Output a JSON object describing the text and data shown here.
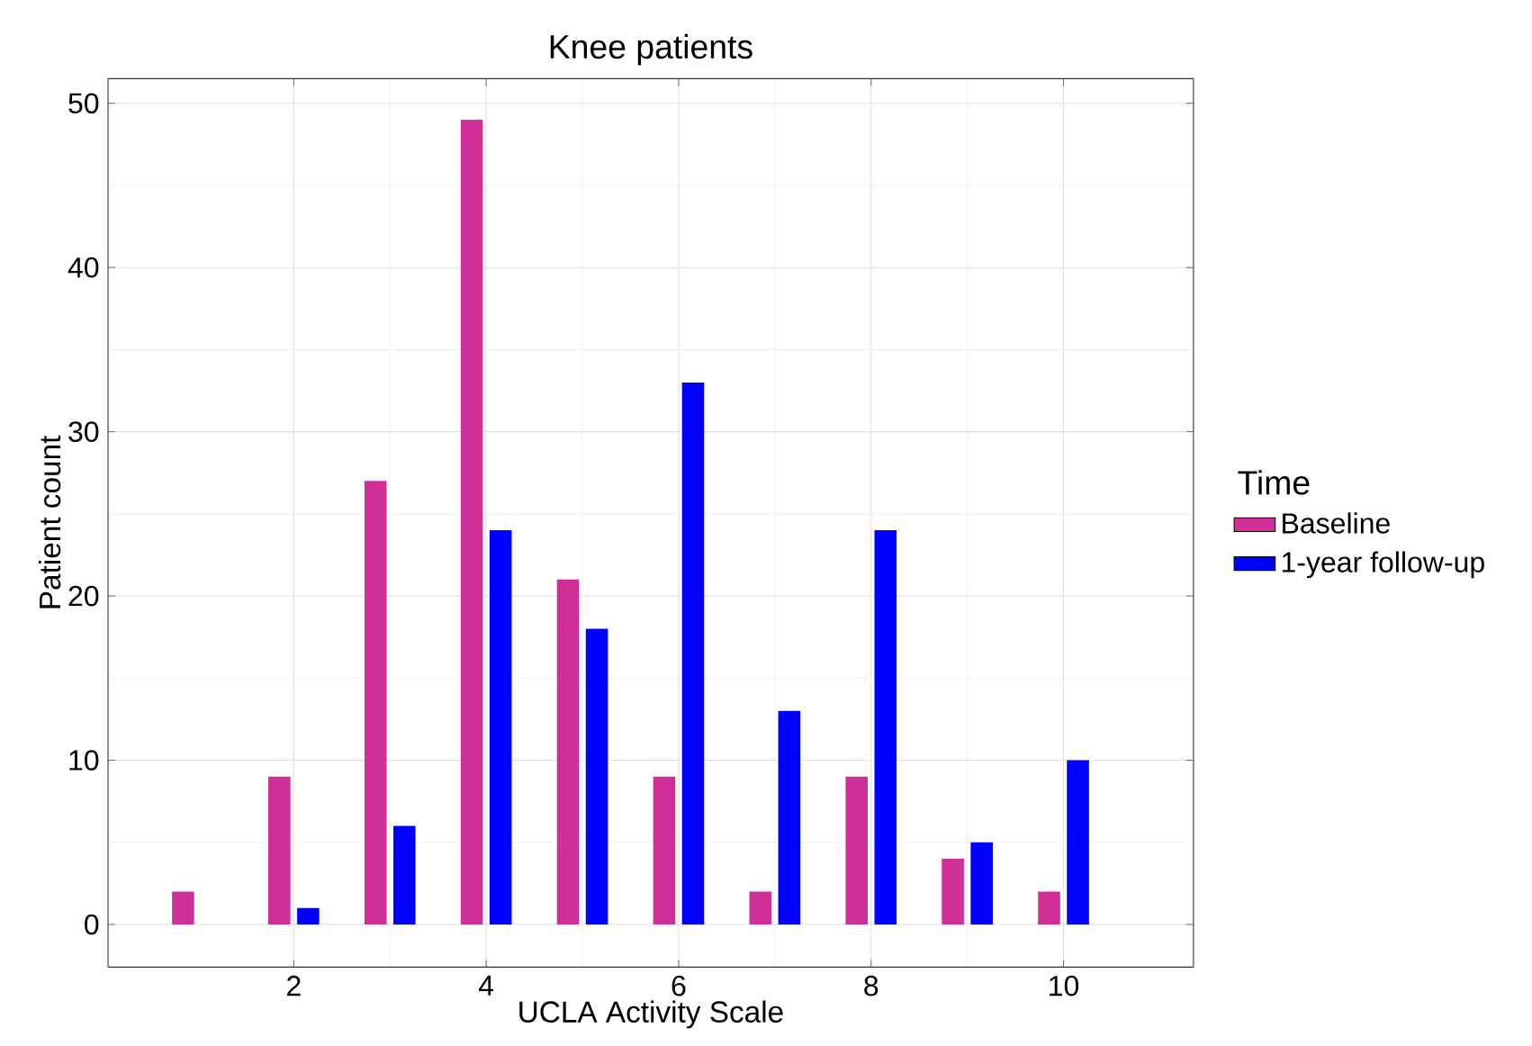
{
  "chart_data": {
    "type": "bar",
    "title": "Knee patients",
    "xlabel": "UCLA Activity Scale",
    "ylabel": "Patient count",
    "legend_title": "Time",
    "x": [
      1,
      2,
      3,
      4,
      5,
      6,
      7,
      8,
      9,
      10
    ],
    "series": [
      {
        "name": "Baseline",
        "color": "#d02f98",
        "values": [
          2,
          9,
          27,
          49,
          21,
          9,
          2,
          9,
          4,
          2
        ]
      },
      {
        "name": "1-year follow-up",
        "color": "#0000ff",
        "values": [
          null,
          1,
          6,
          24,
          18,
          33,
          13,
          24,
          5,
          10
        ]
      }
    ],
    "xlim": [
      0.07,
      11.35
    ],
    "ylim": [
      -2.6,
      51.5
    ],
    "xticks": [
      2,
      4,
      6,
      8,
      10
    ],
    "yticks": [
      0,
      10,
      20,
      30,
      40,
      50
    ],
    "grid": true,
    "legend": "right"
  }
}
